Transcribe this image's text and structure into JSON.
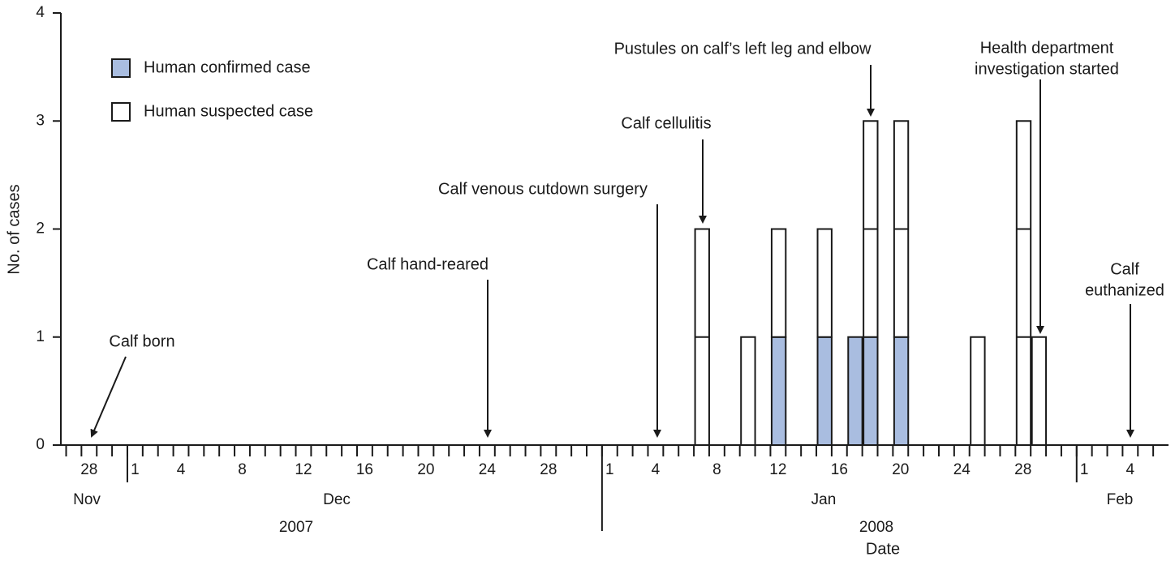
{
  "chart_data": {
    "type": "stacked-bar",
    "x_label": "Date",
    "y_label": "No. of cases",
    "categories": [
      null,
      "28",
      null,
      null,
      "1",
      null,
      null,
      "4",
      null,
      null,
      null,
      "8",
      null,
      null,
      null,
      "12",
      null,
      null,
      null,
      "16",
      null,
      null,
      null,
      "20",
      null,
      null,
      null,
      "24",
      null,
      null,
      null,
      "28",
      null,
      null,
      null,
      "1",
      null,
      null,
      "4",
      null,
      null,
      null,
      "8",
      null,
      null,
      null,
      "12",
      null,
      null,
      null,
      "16",
      null,
      null,
      null,
      "20",
      null,
      null,
      null,
      "24",
      null,
      null,
      null,
      "28",
      null,
      null,
      null,
      "1",
      null,
      null,
      "4",
      null,
      null
    ],
    "months": [
      "Nov",
      "Dec",
      "Jan",
      "Feb"
    ],
    "years": [
      "2007",
      "2008"
    ],
    "series": [
      {
        "name": "Human confirmed case",
        "color": "#a9bde0",
        "values": [
          0,
          0,
          0,
          0,
          0,
          0,
          0,
          0,
          0,
          0,
          0,
          0,
          0,
          0,
          0,
          0,
          0,
          0,
          0,
          0,
          0,
          0,
          0,
          0,
          0,
          0,
          0,
          0,
          0,
          0,
          0,
          0,
          0,
          0,
          0,
          0,
          0,
          0,
          0,
          0,
          0,
          0,
          0,
          0,
          0,
          0,
          1,
          0,
          0,
          1,
          0,
          1,
          1,
          0,
          1,
          0,
          0,
          0,
          0,
          0,
          0,
          0,
          0,
          0,
          0,
          0,
          0,
          0,
          0,
          0,
          0,
          0
        ]
      },
      {
        "name": "Human suspected case",
        "color": "#ffffff",
        "values": [
          0,
          0,
          0,
          0,
          0,
          0,
          0,
          0,
          0,
          0,
          0,
          0,
          0,
          0,
          0,
          0,
          0,
          0,
          0,
          0,
          0,
          0,
          0,
          0,
          0,
          0,
          0,
          0,
          0,
          0,
          0,
          0,
          0,
          0,
          0,
          0,
          0,
          0,
          0,
          0,
          0,
          2,
          0,
          0,
          1,
          0,
          1,
          0,
          0,
          1,
          0,
          0,
          2,
          0,
          2,
          0,
          0,
          0,
          0,
          1,
          0,
          0,
          3,
          1,
          0,
          0,
          0,
          0,
          0,
          0,
          0,
          0
        ]
      }
    ],
    "ylim": [
      0,
      4
    ],
    "yticks": [
      0,
      1,
      2,
      3,
      4
    ],
    "annotations": [
      [
        "Calf born"
      ],
      [
        "Calf hand-reared"
      ],
      [
        "Calf venous cutdown surgery"
      ],
      [
        "Calf cellulitis"
      ],
      [
        "Pustules on calf’s left leg and elbow"
      ],
      [
        "Health department",
        "investigation started"
      ],
      [
        "Calf",
        "euthanized"
      ]
    ]
  }
}
